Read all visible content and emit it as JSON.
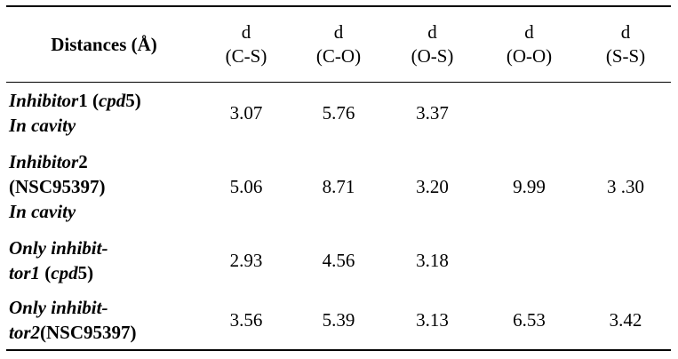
{
  "table": {
    "header_title": "Distances  (Å)",
    "columns": [
      {
        "top": "d",
        "bottom": "(C-S)"
      },
      {
        "top": "d",
        "bottom": "(C-O)"
      },
      {
        "top": "d",
        "bottom": "(O-S)"
      },
      {
        "top": "d",
        "bottom": "(O-O)"
      },
      {
        "top": "d",
        "bottom": "(S-S)"
      }
    ],
    "rows": [
      {
        "label": [
          {
            "parts": [
              {
                "text": "Inhibitor",
                "italic": true
              },
              {
                "text": "1 (",
                "italic": false
              },
              {
                "text": "cpd",
                "italic": true
              },
              {
                "text": "5)",
                "italic": false
              }
            ]
          },
          {
            "parts": [
              {
                "text": "In cavity",
                "italic": true
              }
            ]
          }
        ],
        "values": [
          "3.07",
          "5.76",
          "3.37",
          "",
          ""
        ]
      },
      {
        "label": [
          {
            "parts": [
              {
                "text": "Inhibitor",
                "italic": true
              },
              {
                "text": "2",
                "italic": false
              }
            ]
          },
          {
            "parts": [
              {
                "text": "(NSC95397)",
                "italic": false
              }
            ]
          },
          {
            "parts": [
              {
                "text": "In cavity",
                "italic": true
              }
            ]
          }
        ],
        "values": [
          "5.06",
          "8.71",
          "3.20",
          "9.99",
          "3 .30"
        ]
      },
      {
        "label": [
          {
            "parts": [
              {
                "text": "Only inhibit-",
                "italic": true
              }
            ]
          },
          {
            "parts": [
              {
                "text": "tor1",
                "italic": true
              },
              {
                "text": " (",
                "italic": false
              },
              {
                "text": "cpd",
                "italic": true
              },
              {
                "text": "5)",
                "italic": false
              }
            ]
          }
        ],
        "values": [
          "2.93",
          "4.56",
          "3.18",
          "",
          ""
        ]
      },
      {
        "label": [
          {
            "parts": [
              {
                "text": "Only inhibit-",
                "italic": true
              }
            ]
          },
          {
            "parts": [
              {
                "text": "tor2",
                "italic": true
              },
              {
                "text": "(NSC95397)",
                "italic": false
              }
            ]
          }
        ],
        "values": [
          "3.56",
          "5.39",
          "3.13",
          "6.53",
          "3.42"
        ]
      }
    ]
  }
}
